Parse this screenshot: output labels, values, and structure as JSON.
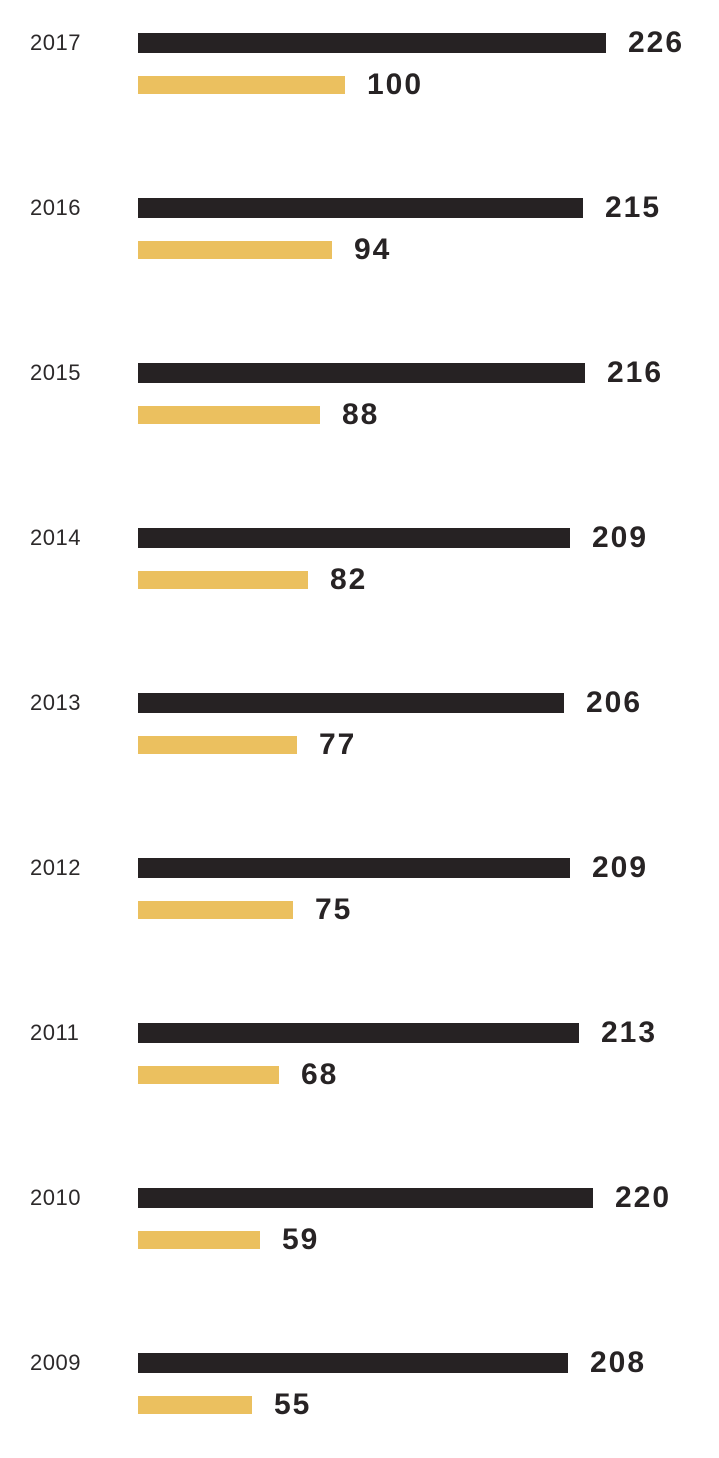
{
  "chart_data": {
    "type": "bar",
    "orientation": "horizontal",
    "title": "",
    "xlabel": "",
    "ylabel": "",
    "categories": [
      "2017",
      "2016",
      "2015",
      "2014",
      "2013",
      "2012",
      "2011",
      "2010",
      "2009"
    ],
    "series": [
      {
        "name": "primary-dark-series",
        "color": "#262223",
        "values": [
          226,
          215,
          216,
          209,
          206,
          209,
          213,
          220,
          208
        ]
      },
      {
        "name": "secondary-gold-series",
        "color": "#ebc05f",
        "values": [
          100,
          94,
          88,
          82,
          77,
          75,
          68,
          59,
          55
        ]
      }
    ],
    "xlim": [
      0,
      232
    ],
    "grid": false,
    "legend": false,
    "value_labels": "end-of-bar"
  },
  "colors": {
    "background": "#ffffff",
    "dark_bar": "#262223",
    "gold_bar": "#ebc05f",
    "value_text": "#272324",
    "year_text": "#2c292a"
  }
}
